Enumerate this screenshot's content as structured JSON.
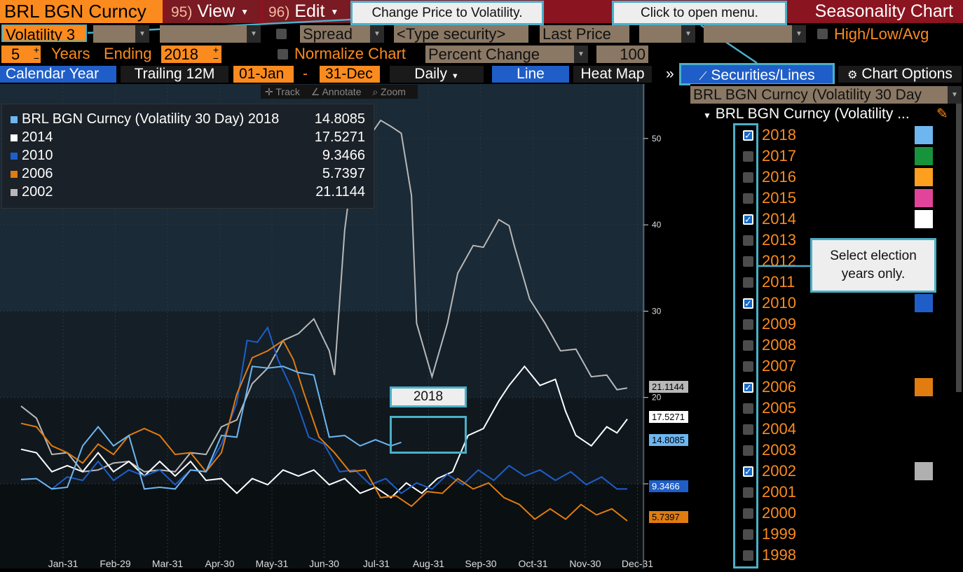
{
  "header": {
    "title": "BRL BGN Curncy",
    "view_num": "95)",
    "view_label": "View",
    "edit_num": "96)",
    "edit_label": "Edit",
    "app_title": "Seasonality Chart"
  },
  "callouts": {
    "change_price": "Change Price to Volatility.",
    "open_menu": "Click to open menu.",
    "select_years": "Select election years only.",
    "year_label": "2018"
  },
  "controls": {
    "field_volatility": "Volatility 3",
    "spread_label": "Spread",
    "security_placeholder": "<Type security>",
    "last_price": "Last Price",
    "hla_label": "High/Low/Avg",
    "years_value": "5",
    "years_label": "Years",
    "ending_label": "Ending",
    "ending_year": "2018",
    "normalize_label": "Normalize Chart",
    "percent_change": "Percent Change",
    "base_value": "100"
  },
  "tabs": {
    "calendar_year": "Calendar Year",
    "trailing": "Trailing 12M",
    "start_date": "01-Jan",
    "dash": "-",
    "end_date": "31-Dec",
    "frequency": "Daily",
    "line": "Line",
    "heat_map": "Heat Map",
    "more": "»",
    "securities_lines": "Securities/Lines",
    "chart_options": "Chart Options"
  },
  "toolbar": {
    "track": "Track",
    "annotate": "Annotate",
    "zoom": "Zoom"
  },
  "legend": [
    {
      "label": "BRL BGN Curncy (Volatility 30 Day) 2018",
      "value": "14.8085",
      "color": "#6eb6f0"
    },
    {
      "label": "2014",
      "value": "17.5271",
      "color": "#ffffff"
    },
    {
      "label": "2010",
      "value": "9.3466",
      "color": "#1f5ec8"
    },
    {
      "label": "2006",
      "value": "5.7397",
      "color": "#e07c10"
    },
    {
      "label": "2002",
      "value": "21.1144",
      "color": "#b8b8b8"
    }
  ],
  "panel": {
    "security_field": "BRL BGN Curncy (Volatility 30 Day",
    "tree_label": "BRL BGN Curncy (Volatility ...",
    "years": [
      {
        "year": "2018",
        "checked": true,
        "color": "#6eb6f0"
      },
      {
        "year": "2017",
        "checked": false,
        "color": "#17933b"
      },
      {
        "year": "2016",
        "checked": false,
        "color": "#ff9f20"
      },
      {
        "year": "2015",
        "checked": false,
        "color": "#e0459a"
      },
      {
        "year": "2014",
        "checked": true,
        "color": "#ffffff"
      },
      {
        "year": "2013",
        "checked": false,
        "color": ""
      },
      {
        "year": "2012",
        "checked": false,
        "color": ""
      },
      {
        "year": "2011",
        "checked": false,
        "color": ""
      },
      {
        "year": "2010",
        "checked": true,
        "color": "#1f5ec8"
      },
      {
        "year": "2009",
        "checked": false,
        "color": ""
      },
      {
        "year": "2008",
        "checked": false,
        "color": ""
      },
      {
        "year": "2007",
        "checked": false,
        "color": ""
      },
      {
        "year": "2006",
        "checked": true,
        "color": "#e07c10"
      },
      {
        "year": "2005",
        "checked": false,
        "color": ""
      },
      {
        "year": "2004",
        "checked": false,
        "color": ""
      },
      {
        "year": "2003",
        "checked": false,
        "color": ""
      },
      {
        "year": "2002",
        "checked": true,
        "color": "#b0b0b0"
      },
      {
        "year": "2001",
        "checked": false,
        "color": ""
      },
      {
        "year": "2000",
        "checked": false,
        "color": ""
      },
      {
        "year": "1999",
        "checked": false,
        "color": ""
      },
      {
        "year": "1998",
        "checked": false,
        "color": ""
      }
    ]
  },
  "chart_data": {
    "type": "line",
    "title": "",
    "xlabel": "",
    "ylabel": "",
    "x_ticks": [
      "Jan-31",
      "Feb-29",
      "Mar-31",
      "Apr-30",
      "May-31",
      "Jun-30",
      "Jul-31",
      "Aug-31",
      "Sep-30",
      "Oct-31",
      "Nov-30",
      "Dec-31"
    ],
    "y_ticks": [
      10,
      20,
      30,
      40,
      50
    ],
    "ylim": [
      1,
      56
    ],
    "series": [
      {
        "name": "2002",
        "color": "#b8b8b8",
        "values": [
          [
            0,
            19
          ],
          [
            0.3,
            17
          ],
          [
            0.6,
            14
          ],
          [
            0.9,
            13
          ],
          [
            1.2,
            12
          ],
          [
            1.5,
            11
          ],
          [
            1.8,
            13
          ],
          [
            2.1,
            12
          ],
          [
            2.4,
            12
          ],
          [
            2.7,
            11
          ],
          [
            3.0,
            12
          ],
          [
            3.3,
            13
          ],
          [
            3.6,
            14
          ],
          [
            3.9,
            16
          ],
          [
            4.2,
            18
          ],
          [
            4.5,
            21
          ],
          [
            4.8,
            24
          ],
          [
            5.1,
            26
          ],
          [
            5.4,
            28
          ],
          [
            5.7,
            28.5
          ],
          [
            6.0,
            26
          ],
          [
            6.1,
            22
          ],
          [
            6.3,
            40
          ],
          [
            6.5,
            48
          ],
          [
            6.8,
            51
          ],
          [
            7.0,
            51.5
          ],
          [
            7.2,
            52
          ],
          [
            7.4,
            50
          ],
          [
            7.6,
            44
          ],
          [
            7.7,
            28
          ],
          [
            8.0,
            23
          ],
          [
            8.3,
            28
          ],
          [
            8.5,
            35
          ],
          [
            8.8,
            37
          ],
          [
            9.0,
            38
          ],
          [
            9.3,
            40
          ],
          [
            9.5,
            40.5
          ],
          [
            9.6,
            37
          ],
          [
            9.9,
            32
          ],
          [
            10.2,
            28
          ],
          [
            10.5,
            26
          ],
          [
            10.8,
            25
          ],
          [
            11.1,
            23
          ],
          [
            11.4,
            22
          ],
          [
            11.6,
            21.5
          ],
          [
            11.8,
            21.1
          ]
        ]
      },
      {
        "name": "2014",
        "color": "#ffffff",
        "values": [
          [
            0,
            14
          ],
          [
            0.3,
            13
          ],
          [
            0.6,
            12
          ],
          [
            0.9,
            11.5
          ],
          [
            1.2,
            12
          ],
          [
            1.5,
            13
          ],
          [
            1.8,
            12
          ],
          [
            2.1,
            12
          ],
          [
            2.4,
            11.5
          ],
          [
            2.7,
            12
          ],
          [
            3.0,
            11.5
          ],
          [
            3.3,
            12
          ],
          [
            3.6,
            11
          ],
          [
            3.9,
            10
          ],
          [
            4.2,
            9.5
          ],
          [
            4.5,
            10
          ],
          [
            4.8,
            10.5
          ],
          [
            5.1,
            11
          ],
          [
            5.4,
            11.5
          ],
          [
            5.7,
            11
          ],
          [
            6.0,
            10.5
          ],
          [
            6.3,
            10
          ],
          [
            6.6,
            9.5
          ],
          [
            6.9,
            9
          ],
          [
            7.2,
            9
          ],
          [
            7.5,
            9.5
          ],
          [
            7.8,
            9.5
          ],
          [
            8.1,
            10
          ],
          [
            8.4,
            12
          ],
          [
            8.7,
            15
          ],
          [
            9.0,
            17
          ],
          [
            9.3,
            19
          ],
          [
            9.5,
            22
          ],
          [
            9.8,
            23
          ],
          [
            10.1,
            22
          ],
          [
            10.4,
            21.5
          ],
          [
            10.6,
            19
          ],
          [
            10.8,
            15
          ],
          [
            11.1,
            15
          ],
          [
            11.4,
            16
          ],
          [
            11.6,
            16.5
          ],
          [
            11.8,
            17.5
          ]
        ]
      },
      {
        "name": "2010",
        "color": "#1f5ec8",
        "values": [
          [
            0,
            10.5
          ],
          [
            0.3,
            10
          ],
          [
            0.6,
            10
          ],
          [
            0.9,
            10.2
          ],
          [
            1.2,
            11
          ],
          [
            1.5,
            12
          ],
          [
            1.8,
            11
          ],
          [
            2.1,
            11
          ],
          [
            2.4,
            11.5
          ],
          [
            2.7,
            11
          ],
          [
            3.0,
            10.5
          ],
          [
            3.3,
            11
          ],
          [
            3.6,
            12
          ],
          [
            3.9,
            14
          ],
          [
            4.2,
            20
          ],
          [
            4.4,
            26
          ],
          [
            4.6,
            27
          ],
          [
            4.8,
            27.5
          ],
          [
            5.0,
            25
          ],
          [
            5.3,
            20
          ],
          [
            5.6,
            16
          ],
          [
            5.9,
            14
          ],
          [
            6.2,
            12
          ],
          [
            6.5,
            11
          ],
          [
            6.8,
            10.5
          ],
          [
            7.1,
            10
          ],
          [
            7.4,
            9.5
          ],
          [
            7.7,
            9.5
          ],
          [
            8.0,
            10
          ],
          [
            8.3,
            10.5
          ],
          [
            8.6,
            10.5
          ],
          [
            8.9,
            11
          ],
          [
            9.2,
            11
          ],
          [
            9.5,
            11.5
          ],
          [
            9.8,
            11.5
          ],
          [
            10.1,
            11
          ],
          [
            10.4,
            11
          ],
          [
            10.7,
            10.8
          ],
          [
            11.0,
            10.5
          ],
          [
            11.3,
            10.2
          ],
          [
            11.6,
            10
          ],
          [
            11.8,
            9.4
          ]
        ]
      },
      {
        "name": "2006",
        "color": "#e07c10",
        "values": [
          [
            0,
            17
          ],
          [
            0.3,
            16
          ],
          [
            0.6,
            15
          ],
          [
            0.9,
            13
          ],
          [
            1.2,
            13
          ],
          [
            1.5,
            14
          ],
          [
            1.8,
            14
          ],
          [
            2.1,
            15
          ],
          [
            2.4,
            17
          ],
          [
            2.7,
            15
          ],
          [
            3.0,
            14
          ],
          [
            3.3,
            13
          ],
          [
            3.6,
            12
          ],
          [
            3.9,
            13
          ],
          [
            4.2,
            21
          ],
          [
            4.5,
            24
          ],
          [
            4.8,
            26
          ],
          [
            5.1,
            26
          ],
          [
            5.3,
            25
          ],
          [
            5.5,
            20
          ],
          [
            5.8,
            16
          ],
          [
            6.1,
            13
          ],
          [
            6.4,
            12
          ],
          [
            6.7,
            11
          ],
          [
            7.0,
            9
          ],
          [
            7.3,
            8
          ],
          [
            7.6,
            8
          ],
          [
            7.9,
            8.5
          ],
          [
            8.2,
            9.5
          ],
          [
            8.5,
            10
          ],
          [
            8.8,
            10
          ],
          [
            9.1,
            9.5
          ],
          [
            9.4,
            9
          ],
          [
            9.7,
            7
          ],
          [
            10.0,
            6.5
          ],
          [
            10.3,
            6.5
          ],
          [
            10.6,
            6.5
          ],
          [
            10.9,
            7
          ],
          [
            11.2,
            7
          ],
          [
            11.5,
            6.5
          ],
          [
            11.8,
            5.7
          ]
        ]
      },
      {
        "name": "2018",
        "color": "#6eb6f0",
        "values": [
          [
            0,
            10.5
          ],
          [
            0.3,
            10
          ],
          [
            0.6,
            10
          ],
          [
            0.9,
            9
          ],
          [
            1.2,
            15
          ],
          [
            1.5,
            16
          ],
          [
            1.8,
            15
          ],
          [
            2.1,
            15
          ],
          [
            2.4,
            10
          ],
          [
            2.7,
            9
          ],
          [
            3.0,
            10
          ],
          [
            3.3,
            11
          ],
          [
            3.6,
            12
          ],
          [
            3.9,
            15
          ],
          [
            4.2,
            16
          ],
          [
            4.5,
            23
          ],
          [
            4.8,
            24
          ],
          [
            5.1,
            23
          ],
          [
            5.4,
            23.5
          ],
          [
            5.7,
            22
          ],
          [
            6.0,
            16
          ],
          [
            6.3,
            15
          ],
          [
            6.6,
            15
          ],
          [
            6.9,
            14.5
          ],
          [
            7.2,
            15
          ],
          [
            7.4,
            14.8
          ]
        ]
      }
    ]
  }
}
